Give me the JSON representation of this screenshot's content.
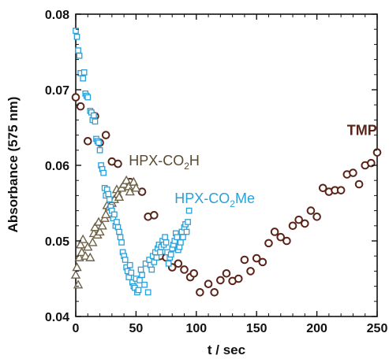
{
  "chart_data": {
    "type": "scatter",
    "xlabel": "t / sec",
    "ylabel": "Absorbance (575 nm)",
    "xlim": [
      0,
      250
    ],
    "ylim": [
      0.04,
      0.08
    ],
    "x_ticks": [
      0,
      50,
      100,
      150,
      200,
      250
    ],
    "y_ticks": [
      0.04,
      0.05,
      0.06,
      0.07,
      0.08
    ],
    "x_tick_labels": [
      "0",
      "50",
      "100",
      "150",
      "200",
      "250"
    ],
    "y_tick_labels": [
      "0.04",
      "0.05",
      "0.06",
      "0.07",
      "0.08"
    ],
    "grid": false,
    "series": [
      {
        "name": "TMP",
        "marker": "circle",
        "color": "#5a2418",
        "points": [
          [
            0,
            0.069
          ],
          [
            4,
            0.0678
          ],
          [
            10,
            0.0632
          ],
          [
            16,
            0.0665
          ],
          [
            20,
            0.063
          ],
          [
            25,
            0.064
          ],
          [
            30,
            0.0605
          ],
          [
            35,
            0.0602
          ],
          [
            45,
            0.0578
          ],
          [
            55,
            0.0565
          ],
          [
            60,
            0.0532
          ],
          [
            65,
            0.0534
          ],
          [
            70,
            0.048
          ],
          [
            75,
            0.0478
          ],
          [
            80,
            0.0465
          ],
          [
            85,
            0.047
          ],
          [
            90,
            0.0462
          ],
          [
            95,
            0.0452
          ],
          [
            98,
            0.0457
          ],
          [
            103,
            0.0432
          ],
          [
            110,
            0.0443
          ],
          [
            115,
            0.0432
          ],
          [
            120,
            0.0448
          ],
          [
            125,
            0.0457
          ],
          [
            130,
            0.0447
          ],
          [
            135,
            0.045
          ],
          [
            140,
            0.0475
          ],
          [
            145,
            0.046
          ],
          [
            150,
            0.0477
          ],
          [
            155,
            0.0472
          ],
          [
            160,
            0.0497
          ],
          [
            165,
            0.0512
          ],
          [
            170,
            0.0505
          ],
          [
            175,
            0.05
          ],
          [
            180,
            0.052
          ],
          [
            185,
            0.0528
          ],
          [
            190,
            0.0523
          ],
          [
            195,
            0.054
          ],
          [
            200,
            0.0532
          ],
          [
            205,
            0.057
          ],
          [
            210,
            0.0565
          ],
          [
            215,
            0.0567
          ],
          [
            220,
            0.0567
          ],
          [
            225,
            0.0588
          ],
          [
            230,
            0.059
          ],
          [
            235,
            0.0575
          ],
          [
            240,
            0.06
          ],
          [
            245,
            0.0603
          ],
          [
            250,
            0.0617
          ]
        ]
      },
      {
        "name": "HPX-CO2H",
        "marker": "triangle",
        "color": "#6e6248",
        "points": [
          [
            0,
            0.0455
          ],
          [
            1,
            0.0465
          ],
          [
            2,
            0.0442
          ],
          [
            3,
            0.0478
          ],
          [
            4,
            0.0495
          ],
          [
            5,
            0.0485
          ],
          [
            6,
            0.0502
          ],
          [
            8,
            0.048
          ],
          [
            10,
            0.0492
          ],
          [
            12,
            0.0478
          ],
          [
            14,
            0.0498
          ],
          [
            15,
            0.051
          ],
          [
            16,
            0.0518
          ],
          [
            18,
            0.0508
          ],
          [
            19,
            0.0525
          ],
          [
            20,
            0.0512
          ],
          [
            22,
            0.052
          ],
          [
            24,
            0.053
          ],
          [
            25,
            0.0535
          ],
          [
            26,
            0.0547
          ],
          [
            28,
            0.0545
          ],
          [
            30,
            0.055
          ],
          [
            32,
            0.0555
          ],
          [
            34,
            0.0568
          ],
          [
            35,
            0.0562
          ],
          [
            36,
            0.0558
          ],
          [
            38,
            0.057
          ],
          [
            40,
            0.0575
          ],
          [
            42,
            0.058
          ],
          [
            44,
            0.0572
          ],
          [
            45,
            0.0565
          ],
          [
            48,
            0.0578
          ],
          [
            50,
            0.057
          ]
        ]
      },
      {
        "name": "HPX-CO2Me",
        "marker": "square",
        "color": "#2aa0d8",
        "points": [
          [
            0,
            0.0778
          ],
          [
            1,
            0.077
          ],
          [
            2,
            0.0752
          ],
          [
            3,
            0.0745
          ],
          [
            4,
            0.0722
          ],
          [
            6,
            0.0715
          ],
          [
            7,
            0.0723
          ],
          [
            8,
            0.0695
          ],
          [
            9,
            0.0692
          ],
          [
            10,
            0.069
          ],
          [
            12,
            0.0672
          ],
          [
            13,
            0.067
          ],
          [
            14,
            0.066
          ],
          [
            15,
            0.0666
          ],
          [
            16,
            0.0658
          ],
          [
            17,
            0.0635
          ],
          [
            18,
            0.0632
          ],
          [
            19,
            0.063
          ],
          [
            20,
            0.062
          ],
          [
            21,
            0.06
          ],
          [
            22,
            0.0595
          ],
          [
            23,
            0.059
          ],
          [
            24,
            0.057
          ],
          [
            25,
            0.056
          ],
          [
            26,
            0.0568
          ],
          [
            27,
            0.0562
          ],
          [
            28,
            0.0555
          ],
          [
            29,
            0.0545
          ],
          [
            30,
            0.054
          ],
          [
            31,
            0.053
          ],
          [
            32,
            0.0535
          ],
          [
            33,
            0.052
          ],
          [
            34,
            0.0525
          ],
          [
            35,
            0.0518
          ],
          [
            36,
            0.0512
          ],
          [
            37,
            0.0505
          ],
          [
            38,
            0.0498
          ],
          [
            39,
            0.0485
          ],
          [
            40,
            0.048
          ],
          [
            41,
            0.0475
          ],
          [
            42,
            0.0465
          ],
          [
            43,
            0.046
          ],
          [
            44,
            0.0452
          ],
          [
            45,
            0.0468
          ],
          [
            46,
            0.0458
          ],
          [
            47,
            0.0445
          ],
          [
            48,
            0.044
          ],
          [
            49,
            0.0438
          ],
          [
            50,
            0.045
          ],
          [
            51,
            0.0432
          ],
          [
            52,
            0.0435
          ],
          [
            53,
            0.0448
          ],
          [
            54,
            0.0462
          ],
          [
            55,
            0.0455
          ],
          [
            57,
            0.0442
          ],
          [
            58,
            0.047
          ],
          [
            60,
            0.0432
          ],
          [
            61,
            0.0475
          ],
          [
            62,
            0.0468
          ],
          [
            63,
            0.0462
          ],
          [
            64,
            0.048
          ],
          [
            65,
            0.0472
          ],
          [
            66,
            0.0485
          ],
          [
            67,
            0.0478
          ],
          [
            68,
            0.049
          ],
          [
            69,
            0.0495
          ],
          [
            70,
            0.0485
          ],
          [
            71,
            0.0492
          ],
          [
            72,
            0.05
          ],
          [
            73,
            0.0495
          ],
          [
            74,
            0.0505
          ],
          [
            75,
            0.0498
          ],
          [
            76,
            0.0485
          ],
          [
            77,
            0.047
          ],
          [
            78,
            0.0478
          ],
          [
            79,
            0.0482
          ],
          [
            80,
            0.049
          ],
          [
            81,
            0.0495
          ],
          [
            82,
            0.05
          ],
          [
            83,
            0.051
          ],
          [
            84,
            0.0505
          ],
          [
            85,
            0.0488
          ],
          [
            86,
            0.0492
          ],
          [
            87,
            0.0498
          ],
          [
            88,
            0.0512
          ],
          [
            89,
            0.0505
          ],
          [
            90,
            0.0518
          ],
          [
            91,
            0.0522
          ],
          [
            92,
            0.0512
          ],
          [
            93,
            0.0525
          ],
          [
            94,
            0.054
          ]
        ]
      }
    ],
    "annotations": [
      {
        "id": "tmp",
        "text": "TMP",
        "x": 225,
        "y": 0.064,
        "color": "#5a2418",
        "bold": true
      },
      {
        "id": "co2h",
        "base": "HPX-CO",
        "sub": "2",
        "tail": "H",
        "x": 44,
        "y": 0.06,
        "color": "#5a4a30",
        "bold": false
      },
      {
        "id": "co2me",
        "base": "HPX-CO",
        "sub": "2",
        "tail": "Me",
        "x": 82,
        "y": 0.055,
        "color": "#2aa0d8",
        "bold": false
      }
    ]
  }
}
